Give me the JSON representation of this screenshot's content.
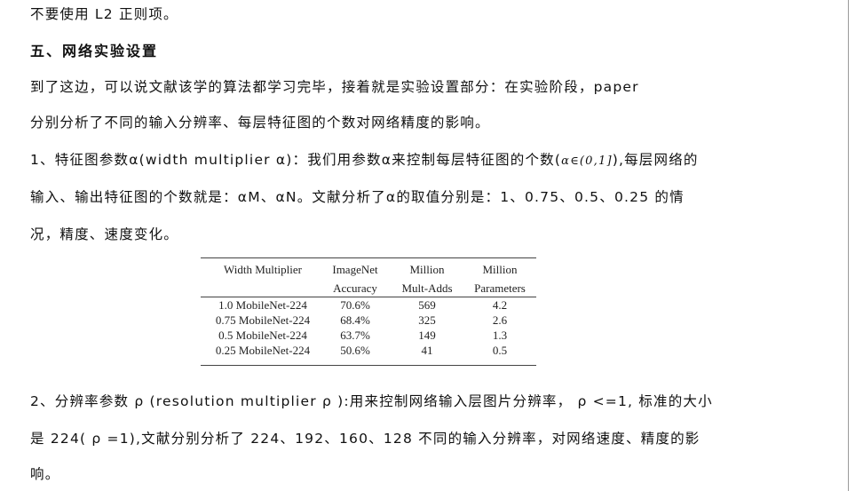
{
  "paragraphs": {
    "line1": "不要使用 L2 正则项。",
    "heading": "五、网络实验设置",
    "line2": "到了这边，可以说文献该学的算法都学习完毕，接着就是实验设置部分：在实验阶段，paper",
    "line3": "分别分析了不同的输入分辨率、每层特征图的个数对网络精度的影响。",
    "line4a": "1、特征图参数α(width multiplier α)：我们用参数α来控制每层特征图的个数(",
    "line4b": "α∈(0,1]",
    "line4c": "),每层网络的",
    "line5": "输入、输出特征图的个数就是：αM、αN。文献分析了α的取值分别是：1、0.75、0.5、0.25 的情",
    "line6": "况，精度、速度变化。",
    "line7": "2、分辨率参数 ρ (resolution multiplier ρ ):用来控制网络输入层图片分辨率， ρ <=1, 标准的大小",
    "line8": "是 224( ρ =1),文献分别分析了 224、192、160、128 不同的输入分辨率，对网络速度、精度的影",
    "line9": "响。"
  },
  "table": {
    "headers": [
      {
        "top": "Width Multiplier",
        "bottom": ""
      },
      {
        "top": "ImageNet",
        "bottom": "Accuracy"
      },
      {
        "top": "Million",
        "bottom": "Mult-Adds"
      },
      {
        "top": "Million",
        "bottom": "Parameters"
      }
    ],
    "rows": [
      [
        "1.0 MobileNet-224",
        "70.6%",
        "569",
        "4.2"
      ],
      [
        "0.75 MobileNet-224",
        "68.4%",
        "325",
        "2.6"
      ],
      [
        "0.5 MobileNet-224",
        "63.7%",
        "149",
        "1.3"
      ],
      [
        "0.25 MobileNet-224",
        "50.6%",
        "41",
        "0.5"
      ]
    ]
  }
}
